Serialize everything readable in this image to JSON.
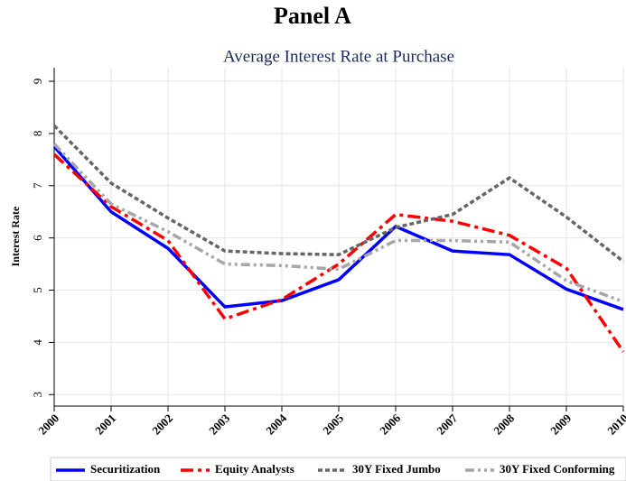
{
  "chart_data": {
    "type": "line",
    "title": "Panel A",
    "subtitle": "Average Interest Rate at Purchase",
    "y_label": "Interest Rate",
    "categories": [
      "2000",
      "2001",
      "2002",
      "2003",
      "2004",
      "2005",
      "2006",
      "2007",
      "2008",
      "2009",
      "2010"
    ],
    "series": [
      {
        "name": "Securitization",
        "color": "#0000ff",
        "linestyle": "solid",
        "values": [
          7.75,
          6.5,
          5.8,
          4.68,
          4.8,
          5.2,
          6.22,
          5.75,
          5.68,
          5.02,
          4.63
        ]
      },
      {
        "name": "Equity Analysts",
        "color": "#ff0000",
        "linestyle": "dash-dot",
        "values": [
          7.6,
          6.6,
          5.95,
          4.45,
          4.82,
          5.5,
          6.45,
          6.32,
          6.05,
          5.42,
          3.82
        ]
      },
      {
        "name": "30Y Fixed Jumbo",
        "color": "#666666",
        "linestyle": "dotted",
        "values": [
          8.15,
          7.05,
          6.38,
          5.75,
          5.7,
          5.68,
          6.2,
          6.45,
          7.15,
          6.4,
          5.55
        ]
      },
      {
        "name": "30Y Fixed Conforming",
        "color": "#a6a6a6",
        "linestyle": "dash-dot-dot",
        "values": [
          7.8,
          6.65,
          6.12,
          5.5,
          5.47,
          5.4,
          5.95,
          5.95,
          5.92,
          5.18,
          4.78
        ]
      }
    ],
    "ylim": [
      2.78,
      9.26
    ],
    "yticks": [
      3,
      4,
      5,
      6,
      7,
      8,
      9
    ],
    "grid": true,
    "legend": "bottom"
  }
}
